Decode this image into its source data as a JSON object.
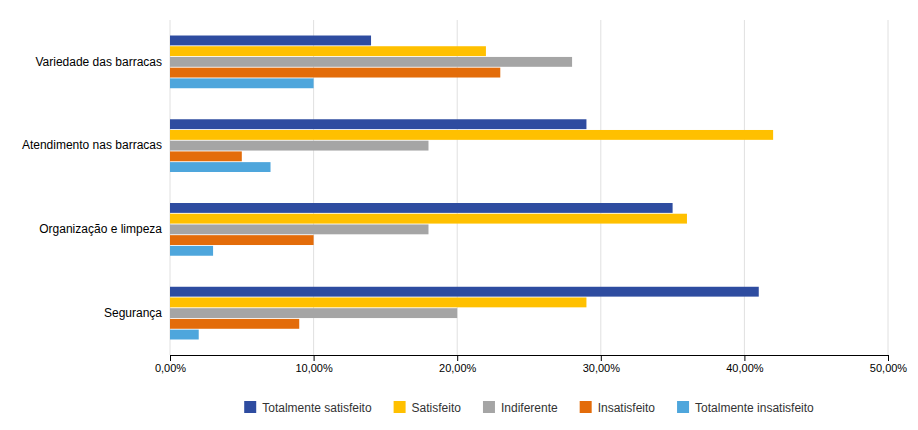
{
  "chart_data": {
    "type": "bar",
    "orientation": "horizontal",
    "categories": [
      "Variedade das barracas",
      "Atendimento nas barracas",
      "Organização e limpeza",
      "Segurança"
    ],
    "series": [
      {
        "name": "Totalmente satisfeito",
        "color": "#2E4CA0",
        "values": [
          0.14,
          0.29,
          0.35,
          0.41
        ]
      },
      {
        "name": "Satisfeito",
        "color": "#FFC000",
        "values": [
          0.22,
          0.42,
          0.36,
          0.29
        ]
      },
      {
        "name": "Indiferente",
        "color": "#A5A5A5",
        "values": [
          0.28,
          0.18,
          0.18,
          0.2
        ]
      },
      {
        "name": "Insatisfeito",
        "color": "#E36C0A",
        "values": [
          0.23,
          0.05,
          0.1,
          0.09
        ]
      },
      {
        "name": "Totalmente insatisfeito",
        "color": "#4EA6DC",
        "values": [
          0.1,
          0.07,
          0.03,
          0.02
        ]
      }
    ],
    "xlim": [
      0,
      0.5
    ],
    "xticks": [
      {
        "value": 0.0,
        "label": "0,00%"
      },
      {
        "value": 0.1,
        "label": "10,00%"
      },
      {
        "value": 0.2,
        "label": "20,00%"
      },
      {
        "value": 0.3,
        "label": "30,00%"
      },
      {
        "value": 0.4,
        "label": "40,00%"
      },
      {
        "value": 0.5,
        "label": "50,00%"
      }
    ],
    "grid": true,
    "legend": "bottom"
  }
}
